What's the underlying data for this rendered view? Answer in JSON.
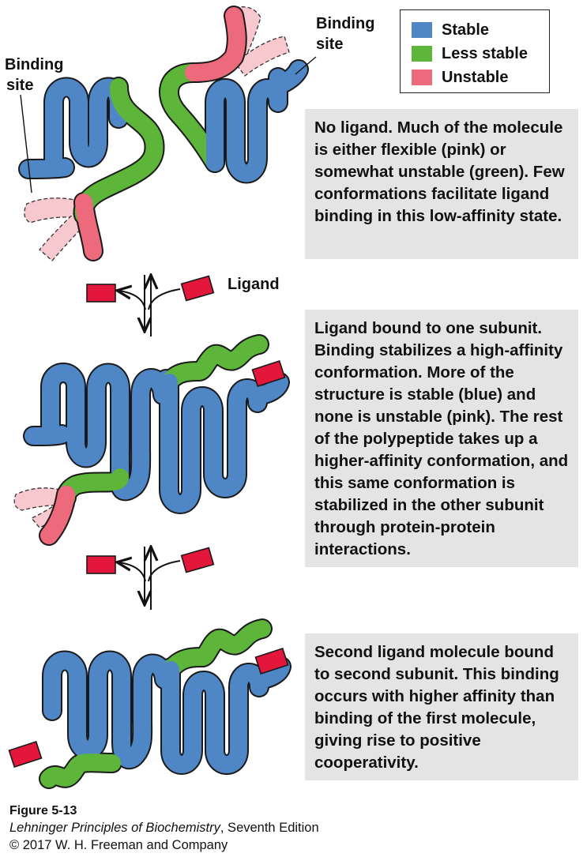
{
  "legend": {
    "items": [
      {
        "label": "Stable",
        "color": "#4f86c6"
      },
      {
        "label": "Less stable",
        "color": "#5db53a"
      },
      {
        "label": "Unstable",
        "color": "#ec6a7c"
      }
    ]
  },
  "labels": {
    "binding_site_left_1": "Binding",
    "binding_site_left_2": "site",
    "binding_site_right_1": "Binding",
    "binding_site_right_2": "site",
    "ligand": "Ligand"
  },
  "panels": [
    {
      "text": "No ligand. Much of the molecule is either flexible (pink) or somewhat unstable (green). Few conformations facilitate ligand binding in this low-affinity state."
    },
    {
      "text": "Ligand bound to one subunit. Binding stabilizes a high-affinity conformation. More of the structure is stable (blue) and none is unstable (pink). The rest of the polypeptide takes up a higher-affinity conformation, and this same conformation is stabilized in the other subunit through protein-protein interactions."
    },
    {
      "text": "Second ligand molecule bound to second subunit. This binding occurs with higher affinity than binding of the first molecule, giving rise to positive cooperativity."
    }
  ],
  "caption": {
    "figure": "Figure 5-13",
    "book_title": "Lehninger Principles of Biochemistry",
    "edition": ", Seventh Edition",
    "copyright": "© 2017 W. H. Freeman and Company"
  }
}
